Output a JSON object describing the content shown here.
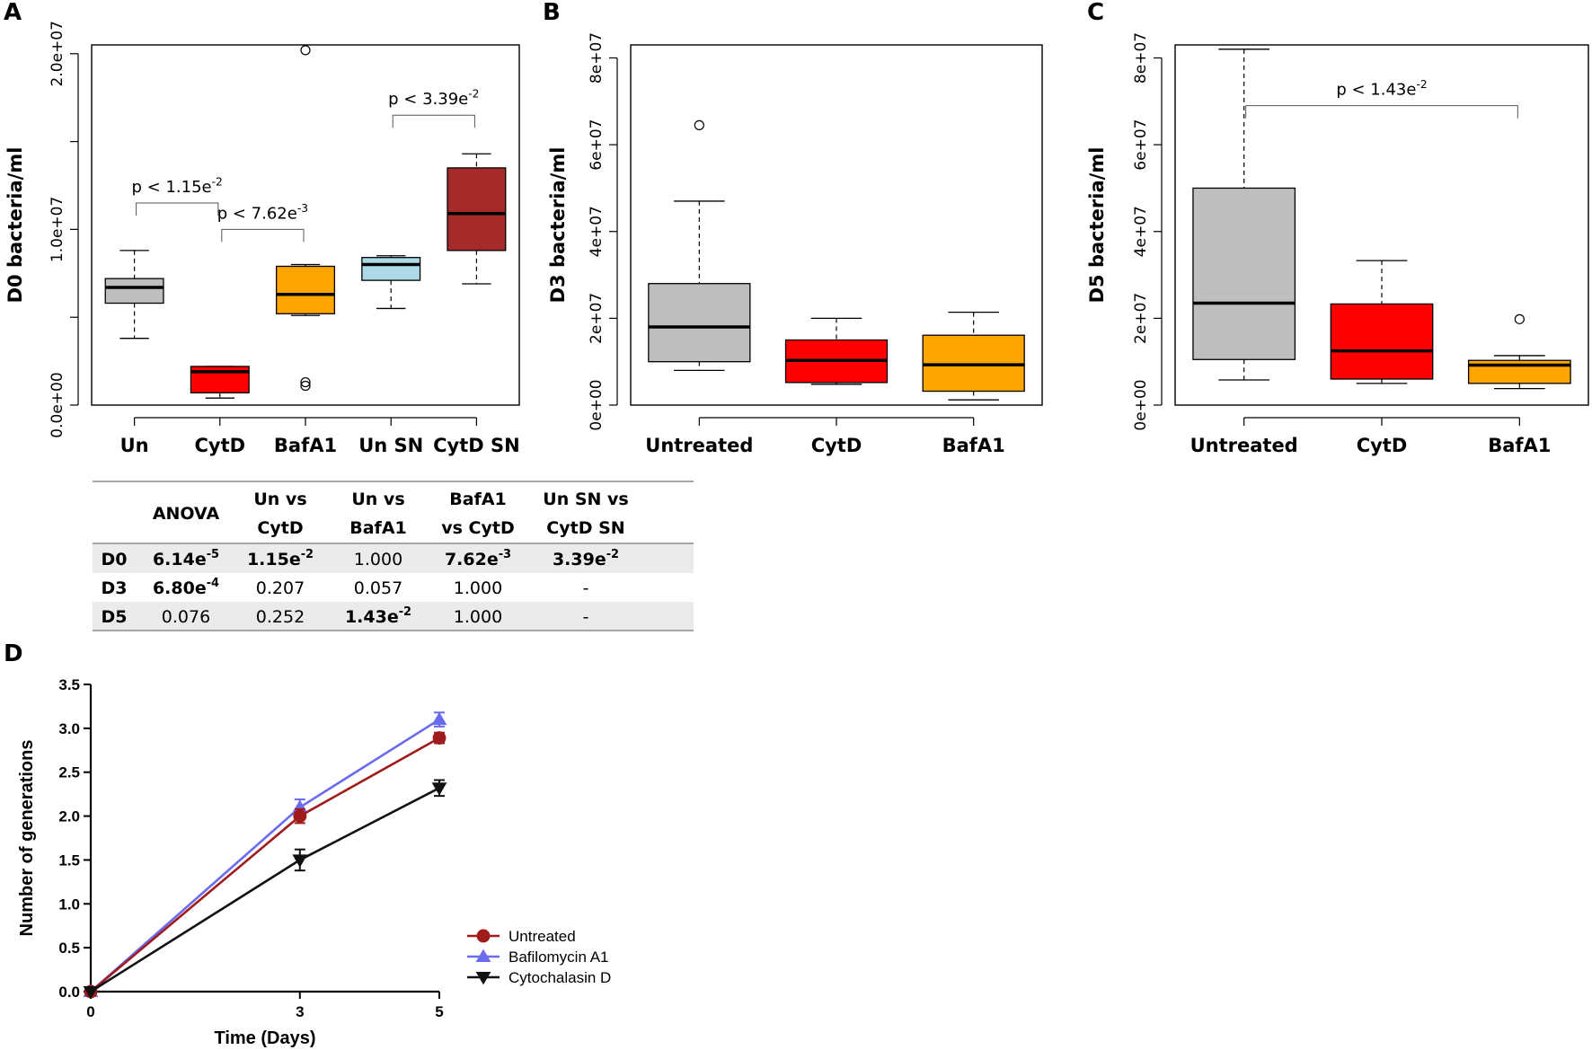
{
  "panels": {
    "A": {
      "label": "A",
      "chart_data": {
        "type": "box",
        "ylabel": "D0 bacteria/ml",
        "ylim": [
          0,
          20500000
        ],
        "yticks": [
          0,
          10000000,
          20000000
        ],
        "ytick_labels": [
          "0.0e+00",
          "1.0e+07",
          "2.0e+07"
        ],
        "minor_yticks": [
          5000000,
          15000000
        ],
        "categories": [
          "Un",
          "CytD",
          "BafA1",
          "Un SN",
          "CytD SN"
        ],
        "boxes": [
          {
            "name": "Un",
            "color": "#bebebe",
            "whisker_low": 3800000,
            "q1": 5800000,
            "median": 6700000,
            "q3": 7200000,
            "whisker_high": 8800000,
            "outliers": []
          },
          {
            "name": "CytD",
            "color": "#ff0000",
            "whisker_low": 400000,
            "q1": 700000,
            "median": 1900000,
            "q3": 2200000,
            "whisker_high": 2200000,
            "outliers": []
          },
          {
            "name": "BafA1",
            "color": "#ffa500",
            "whisker_low": 5100000,
            "q1": 5200000,
            "median": 6300000,
            "q3": 7900000,
            "whisker_high": 8000000,
            "outliers": [
              1300000,
              1100000,
              20200000
            ]
          },
          {
            "name": "Un SN",
            "color": "#add8e6",
            "whisker_low": 5500000,
            "q1": 7100000,
            "median": 8000000,
            "q3": 8400000,
            "whisker_high": 8500000,
            "outliers": []
          },
          {
            "name": "CytD SN",
            "color": "#a52a2a",
            "whisker_low": 6900000,
            "q1": 8800000,
            "median": 10900000,
            "q3": 13500000,
            "whisker_high": 14300000,
            "outliers": []
          }
        ],
        "annotations": [
          {
            "from": 0,
            "to": 1,
            "level": 11500000,
            "prefix": "p < 1.15e",
            "exp": "-2"
          },
          {
            "from": 1,
            "to": 2,
            "level": 10000000,
            "prefix": "p < 7.62e",
            "exp": "-3"
          },
          {
            "from": 3,
            "to": 4,
            "level": 16500000,
            "prefix": "p < 3.39e",
            "exp": "-2"
          }
        ]
      }
    },
    "B": {
      "label": "B",
      "chart_data": {
        "type": "box",
        "ylabel": "D3 bacteria/ml",
        "ylim": [
          0,
          83000000
        ],
        "yticks": [
          0,
          20000000,
          40000000,
          60000000,
          80000000
        ],
        "ytick_labels": [
          "0e+00",
          "2e+07",
          "4e+07",
          "6e+07",
          "8e+07"
        ],
        "minor_yticks": [],
        "categories": [
          "Untreated",
          "CytD",
          "BafA1"
        ],
        "boxes": [
          {
            "name": "Untreated",
            "color": "#bebebe",
            "whisker_low": 8000000,
            "q1": 10000000,
            "median": 18000000,
            "q3": 28000000,
            "whisker_high": 47000000,
            "outliers": [
              64500000
            ]
          },
          {
            "name": "CytD",
            "color": "#ff0000",
            "whisker_low": 4800000,
            "q1": 5200000,
            "median": 10300000,
            "q3": 15000000,
            "whisker_high": 20000000,
            "outliers": []
          },
          {
            "name": "BafA1",
            "color": "#ffa500",
            "whisker_low": 1200000,
            "q1": 3200000,
            "median": 9300000,
            "q3": 16100000,
            "whisker_high": 21400000,
            "outliers": []
          }
        ],
        "annotations": []
      }
    },
    "C": {
      "label": "C",
      "chart_data": {
        "type": "box",
        "ylabel": "D5 bacteria/ml",
        "ylim": [
          0,
          83000000
        ],
        "yticks": [
          0,
          20000000,
          40000000,
          60000000,
          80000000
        ],
        "ytick_labels": [
          "0e+00",
          "2e+07",
          "4e+07",
          "6e+07",
          "8e+07"
        ],
        "minor_yticks": [],
        "categories": [
          "Untreated",
          "CytD",
          "BafA1"
        ],
        "boxes": [
          {
            "name": "Untreated",
            "color": "#bebebe",
            "whisker_low": 5800000,
            "q1": 10500000,
            "median": 23500000,
            "q3": 50000000,
            "whisker_high": 82000000,
            "outliers": []
          },
          {
            "name": "CytD",
            "color": "#ff0000",
            "whisker_low": 5000000,
            "q1": 6000000,
            "median": 12500000,
            "q3": 23300000,
            "whisker_high": 33300000,
            "outliers": []
          },
          {
            "name": "BafA1",
            "color": "#ffa500",
            "whisker_low": 3800000,
            "q1": 5000000,
            "median": 9200000,
            "q3": 10300000,
            "whisker_high": 11400000,
            "outliers": [
              19800000
            ]
          }
        ],
        "annotations": [
          {
            "from": 0,
            "to": 2,
            "level": 69000000,
            "prefix": "p < 1.43e",
            "exp": "-2"
          }
        ]
      }
    },
    "D": {
      "label": "D",
      "chart_data": {
        "type": "line",
        "xlabel": "Time (Days)",
        "ylabel": "Number of generations",
        "x": [
          0,
          3,
          5
        ],
        "xticks": [
          0,
          3,
          5
        ],
        "xlim": [
          0,
          5
        ],
        "ylim": [
          0,
          3.5
        ],
        "yticks": [
          0,
          0.5,
          1.0,
          1.5,
          2.0,
          2.5,
          3.0,
          3.5
        ],
        "ytick_labels": [
          "0.0",
          "0.5",
          "1.0",
          "1.5",
          "2.0",
          "2.5",
          "3.0",
          "3.5"
        ],
        "legend_position": "bottom-right",
        "series": [
          {
            "name": "Bafilomycin A1",
            "color": "#6b6bee",
            "marker": "triangle-up",
            "values": [
              0,
              2.1,
              3.1
            ],
            "errors": [
              0,
              0.09,
              0.08
            ]
          },
          {
            "name": "Untreated",
            "color": "#a01c1c",
            "marker": "circle",
            "values": [
              0,
              2.0,
              2.89
            ],
            "errors": [
              0,
              0.08,
              0.06
            ]
          },
          {
            "name": "Cytochalasin D",
            "color": "#111111",
            "marker": "triangle-down",
            "values": [
              0,
              1.5,
              2.32
            ],
            "errors": [
              0,
              0.12,
              0.09
            ]
          }
        ],
        "legend": [
          "Untreated",
          "Bafilomycin A1",
          "Cytochalasin D"
        ]
      }
    }
  },
  "table": {
    "header": [
      {
        "line1": "",
        "line2": ""
      },
      {
        "line1": "ANOVA",
        "line2": ""
      },
      {
        "line1": "Un vs",
        "line2": "CytD"
      },
      {
        "line1": "Un vs",
        "line2": "BafA1"
      },
      {
        "line1": "BafA1",
        "line2": "vs CytD"
      },
      {
        "line1": "Un SN vs",
        "line2": "CytD SN"
      }
    ],
    "rows": [
      {
        "label": "D0",
        "shaded": true,
        "cells": [
          {
            "base": "6.14e",
            "exp": "-5",
            "bold": true
          },
          {
            "base": "1.15e",
            "exp": "-2",
            "bold": true
          },
          {
            "base": "1.000",
            "exp": "",
            "bold": false
          },
          {
            "base": "7.62e",
            "exp": "-3",
            "bold": true
          },
          {
            "base": "3.39e",
            "exp": "-2",
            "bold": true
          }
        ]
      },
      {
        "label": "D3",
        "shaded": false,
        "cells": [
          {
            "base": "6.80e",
            "exp": "-4",
            "bold": true
          },
          {
            "base": "0.207",
            "exp": "",
            "bold": false
          },
          {
            "base": "0.057",
            "exp": "",
            "bold": false
          },
          {
            "base": "1.000",
            "exp": "",
            "bold": false
          },
          {
            "base": "-",
            "exp": "",
            "bold": false
          }
        ]
      },
      {
        "label": "D5",
        "shaded": true,
        "cells": [
          {
            "base": "0.076",
            "exp": "",
            "bold": false
          },
          {
            "base": "0.252",
            "exp": "",
            "bold": false
          },
          {
            "base": "1.43e",
            "exp": "-2",
            "bold": true
          },
          {
            "base": "1.000",
            "exp": "",
            "bold": false
          },
          {
            "base": "-",
            "exp": "",
            "bold": false
          }
        ]
      }
    ]
  },
  "colors": {
    "table_shade": "#ebebeb",
    "table_rule": "#a6a6a6",
    "annot_line": "#555555"
  }
}
